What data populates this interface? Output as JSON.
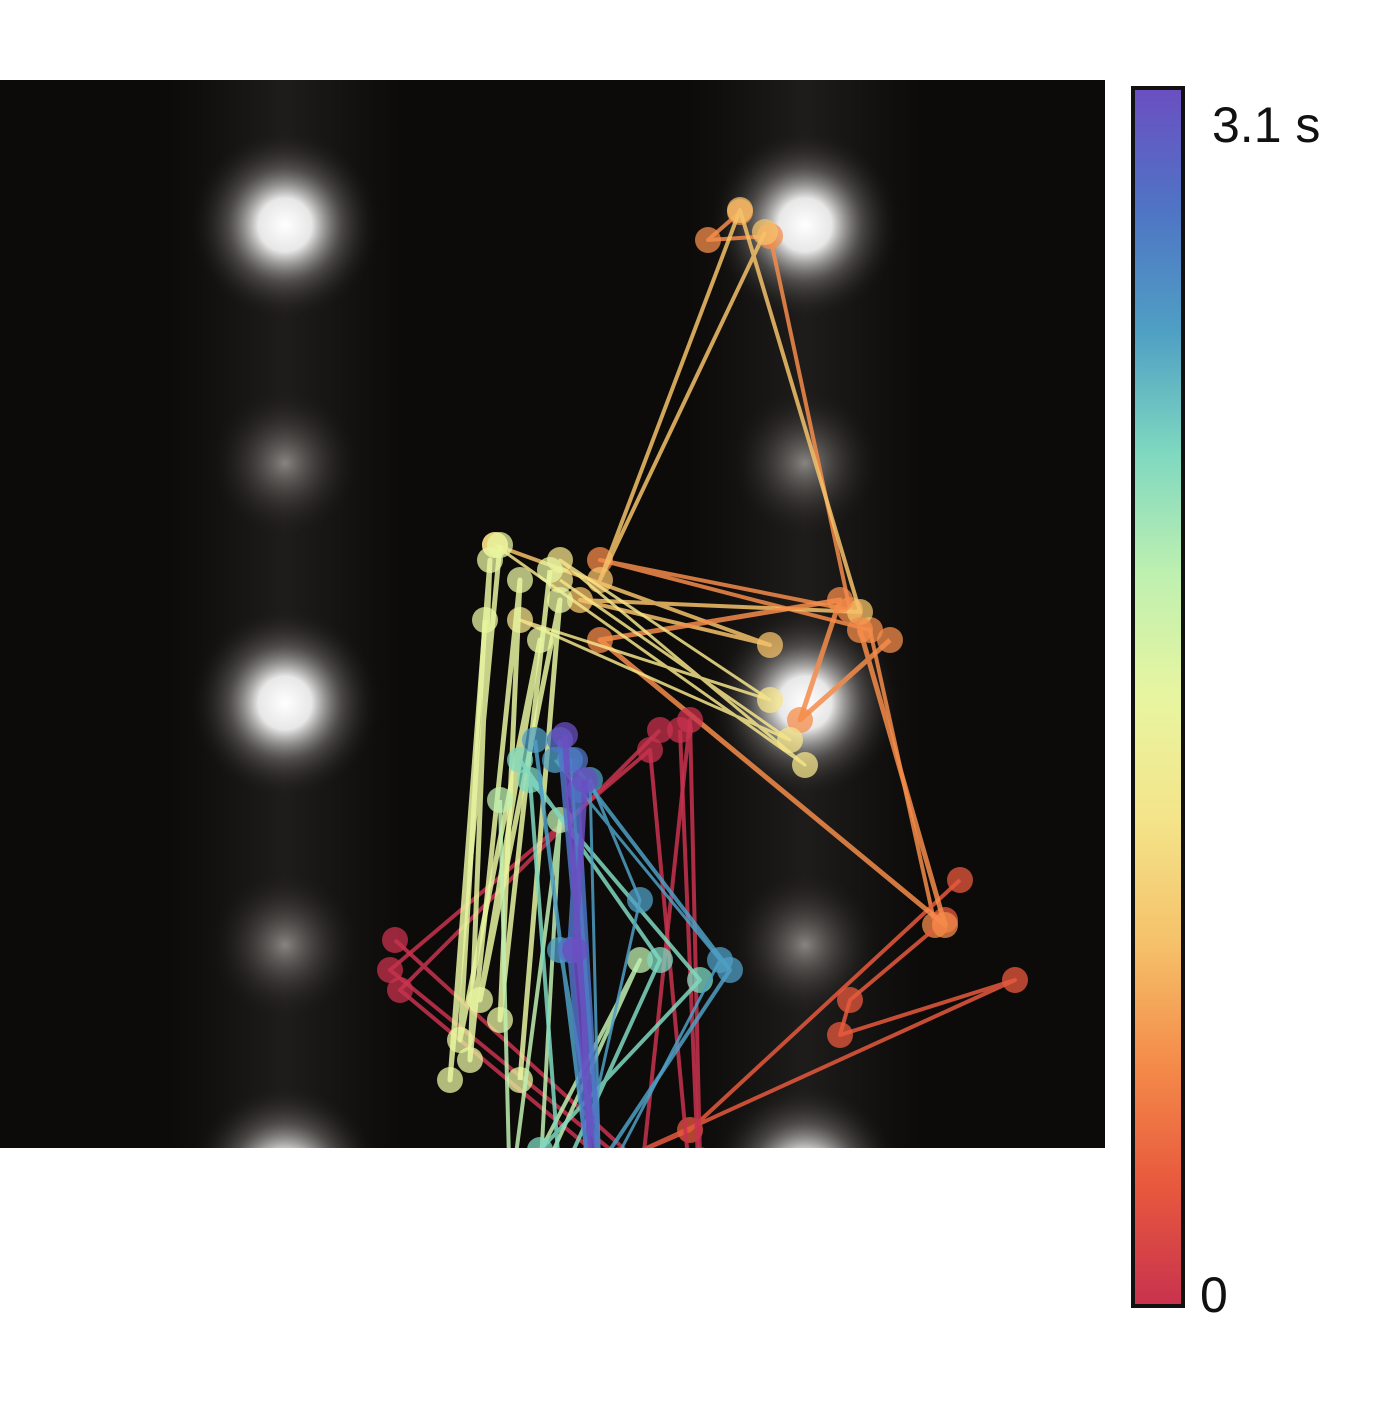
{
  "colorbar": {
    "max_label": "3.1 s",
    "min_label": "0",
    "colormap": [
      "#c8324e",
      "#e8593d",
      "#f48c4a",
      "#f5c26a",
      "#f4e48a",
      "#e8f5a0",
      "#bff0b0",
      "#7fd8c0",
      "#4f9fc4",
      "#4f74c4",
      "#6b4fc2"
    ]
  },
  "image": {
    "background_color": "#0c0b0a",
    "spot_color": "#ffffff",
    "scale_bar_color": "#ffffff"
  }
}
